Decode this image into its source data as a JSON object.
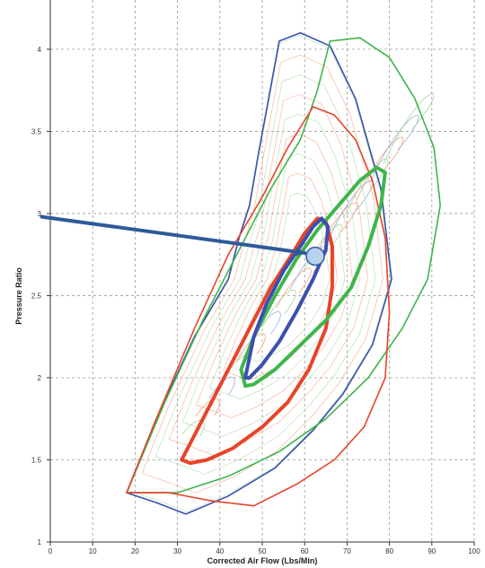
{
  "chart_data": {
    "type": "line",
    "title": "",
    "xlabel": "Corrected Air Flow (Lbs/Min)",
    "ylabel": "Pressure Ratio",
    "xlim": [
      0,
      100
    ],
    "ylim": [
      1,
      4.3
    ],
    "xticks": [
      0,
      10,
      20,
      30,
      40,
      50,
      60,
      70,
      80,
      90,
      100
    ],
    "yticks": [
      1,
      1.5,
      2,
      2.5,
      3,
      3.5,
      4
    ],
    "ytick_labels": [
      "1",
      "1.5",
      "2",
      "2.5",
      "3",
      "3.5",
      "4"
    ],
    "grid": true,
    "colors": {
      "blue": "#3b4fb0",
      "red": "#e8442a",
      "green": "#3fb54a",
      "orange_thin": "#f2a27e",
      "green_thin": "#a5d8a0",
      "blue_thin": "#9fb0e0",
      "pointer": "#2d5a9a",
      "marker_fill": "#b8d2ee"
    },
    "series": [
      {
        "color": "blue",
        "x": [
          18,
          25,
          34,
          42,
          44.5,
          47,
          49,
          51.5,
          54,
          59,
          66,
          72,
          78,
          80.5,
          76,
          69,
          62,
          53,
          42,
          32,
          25,
          18
        ],
        "y": [
          1.3,
          1.75,
          2.25,
          2.6,
          2.85,
          3.05,
          3.35,
          3.7,
          4.05,
          4.1,
          4.02,
          3.7,
          3.15,
          2.6,
          2.2,
          1.9,
          1.68,
          1.45,
          1.28,
          1.17,
          1.24,
          1.3
        ]
      },
      {
        "color": "green",
        "x": [
          18,
          27,
          36,
          45,
          52,
          59,
          63,
          66,
          73,
          80,
          86,
          90.5,
          92,
          89,
          83,
          75,
          65,
          54,
          42,
          30,
          18
        ],
        "y": [
          1.3,
          1.85,
          2.35,
          2.8,
          3.15,
          3.45,
          3.75,
          4.05,
          4.07,
          3.95,
          3.7,
          3.4,
          3.05,
          2.6,
          2.3,
          2.0,
          1.75,
          1.55,
          1.4,
          1.3,
          1.3
        ]
      },
      {
        "color": "red",
        "x": [
          18,
          25,
          34,
          42,
          50,
          56,
          62,
          67,
          72,
          76,
          79,
          80,
          79,
          74,
          67,
          58,
          48,
          38,
          28,
          18
        ],
        "y": [
          1.3,
          1.75,
          2.3,
          2.75,
          3.1,
          3.4,
          3.65,
          3.6,
          3.45,
          3.2,
          2.85,
          2.4,
          2.0,
          1.7,
          1.5,
          1.35,
          1.22,
          1.25,
          1.3,
          1.3
        ]
      },
      {
        "color": "red",
        "x": [
          31,
          35,
          40,
          46,
          52,
          57,
          60,
          63,
          65,
          66.5,
          66.5,
          65,
          61,
          56,
          50,
          43,
          37,
          33,
          31
        ],
        "y": [
          1.5,
          1.7,
          1.95,
          2.25,
          2.55,
          2.75,
          2.88,
          2.97,
          2.95,
          2.8,
          2.55,
          2.3,
          2.05,
          1.85,
          1.7,
          1.57,
          1.5,
          1.48,
          1.5
        ]
      },
      {
        "color": "green",
        "x": [
          46,
          45,
          48,
          53,
          58,
          63,
          68,
          73,
          77,
          79,
          78,
          75,
          71,
          65,
          59,
          53,
          48,
          46
        ],
        "y": [
          1.95,
          2.05,
          2.25,
          2.5,
          2.72,
          2.9,
          3.05,
          3.2,
          3.28,
          3.25,
          3.05,
          2.8,
          2.55,
          2.35,
          2.2,
          2.05,
          1.96,
          1.95
        ]
      },
      {
        "color": "blue",
        "x": [
          46,
          48,
          51,
          55,
          59,
          62,
          64,
          65.5,
          65,
          62,
          58,
          54,
          50,
          47,
          46
        ],
        "y": [
          2.0,
          2.25,
          2.45,
          2.65,
          2.8,
          2.92,
          2.97,
          2.92,
          2.78,
          2.6,
          2.4,
          2.22,
          2.08,
          2.0,
          2.0
        ]
      }
    ],
    "annotations": [
      {
        "type": "arrow",
        "from": [
          -2,
          2.98
        ],
        "to": [
          60,
          2.76
        ],
        "color": "pointer"
      },
      {
        "type": "marker",
        "x": [
          62.5
        ],
        "y": [
          2.74
        ],
        "color": "marker_fill"
      }
    ]
  }
}
